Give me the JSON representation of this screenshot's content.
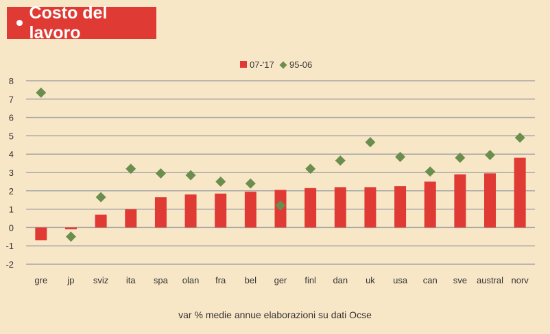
{
  "header": {
    "title": "Costo del lavoro"
  },
  "footer": {
    "note": "var % medie annue elaborazioni su dati Ocse"
  },
  "colors": {
    "background": "#f8e7c7",
    "title_bg": "#e03a34",
    "bar": "#e03a34",
    "marker": "#6b8e4e",
    "grid": "#a6a6a6"
  },
  "chart_data": {
    "type": "bar",
    "title": "",
    "xlabel": "",
    "ylabel": "",
    "ylim": [
      -2,
      8
    ],
    "yticks": [
      8,
      7,
      6,
      5,
      4,
      3,
      2,
      1,
      0,
      -1,
      -2
    ],
    "ytick_labels": [
      "8",
      "7",
      "6",
      "5",
      "4",
      "3",
      "2",
      "1",
      "0",
      "-1",
      "-2"
    ],
    "grid": true,
    "legend_position": "top-center",
    "categories": [
      "gre",
      "jp",
      "sviz",
      "ita",
      "spa",
      "olan",
      "fra",
      "bel",
      "ger",
      "finl",
      "dan",
      "uk",
      "usa",
      "can",
      "sve",
      "austral",
      "norv"
    ],
    "series": [
      {
        "name": "07-'17",
        "kind": "bar",
        "color": "#e03a34",
        "values": [
          -0.7,
          -0.1,
          0.7,
          1.0,
          1.65,
          1.8,
          1.85,
          1.95,
          2.05,
          2.15,
          2.2,
          2.2,
          2.25,
          2.5,
          2.9,
          2.95,
          3.8
        ]
      },
      {
        "name": "95-06",
        "kind": "marker",
        "color": "#6b8e4e",
        "values": [
          7.35,
          -0.5,
          1.65,
          3.2,
          2.95,
          2.85,
          2.5,
          2.4,
          1.2,
          3.2,
          3.65,
          4.65,
          3.85,
          3.05,
          3.8,
          3.95,
          4.9
        ]
      }
    ]
  }
}
